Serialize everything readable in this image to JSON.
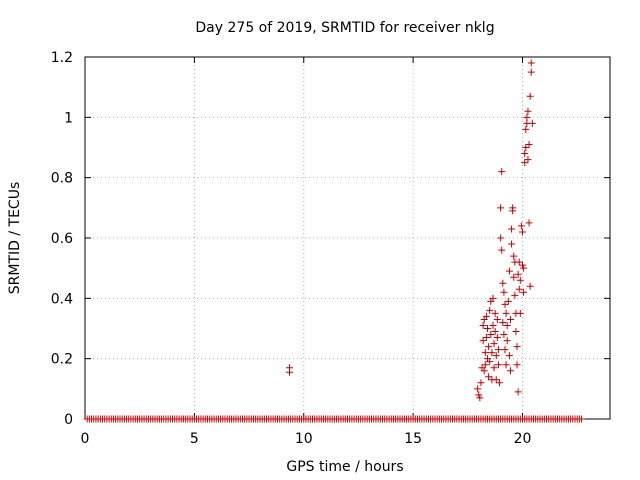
{
  "chart_data": {
    "type": "scatter",
    "title": "Day 275 of 2019, SRMTID for receiver nklg",
    "xlabel": "GPS time / hours",
    "ylabel": "SRMTID / TECUs",
    "xlim": [
      0,
      24
    ],
    "ylim": [
      0,
      1.2
    ],
    "x_ticks": [
      0,
      5,
      10,
      15,
      20
    ],
    "x_tick_labels": [
      "0",
      "5",
      "10",
      "15",
      "20"
    ],
    "y_ticks": [
      0,
      0.2,
      0.4,
      0.6,
      0.8,
      1,
      1.2
    ],
    "y_tick_labels": [
      "0",
      "0.2",
      "0.4",
      "0.6",
      "0.8",
      "1",
      "1.2"
    ],
    "grid": true,
    "marker": "+",
    "color": "#cc0000",
    "baseline": {
      "x_start": 0.1,
      "x_end": 22.7,
      "x_step": 0.1,
      "y": 0
    },
    "series": [
      {
        "name": "SRMTID",
        "points": [
          [
            9.35,
            0.17
          ],
          [
            9.35,
            0.155
          ],
          [
            17.95,
            0.1
          ],
          [
            18.0,
            0.08
          ],
          [
            18.05,
            0.07
          ],
          [
            18.1,
            0.12
          ],
          [
            18.15,
            0.17
          ],
          [
            18.2,
            0.26
          ],
          [
            18.2,
            0.31
          ],
          [
            18.25,
            0.16
          ],
          [
            18.25,
            0.33
          ],
          [
            18.3,
            0.18
          ],
          [
            18.3,
            0.22
          ],
          [
            18.35,
            0.27
          ],
          [
            18.35,
            0.34
          ],
          [
            18.4,
            0.2
          ],
          [
            18.4,
            0.3
          ],
          [
            18.45,
            0.14
          ],
          [
            18.45,
            0.24
          ],
          [
            18.5,
            0.36
          ],
          [
            18.5,
            0.19
          ],
          [
            18.55,
            0.28
          ],
          [
            18.55,
            0.39
          ],
          [
            18.6,
            0.13
          ],
          [
            18.6,
            0.22
          ],
          [
            18.65,
            0.31
          ],
          [
            18.65,
            0.4
          ],
          [
            18.7,
            0.25
          ],
          [
            18.7,
            0.17
          ],
          [
            18.75,
            0.35
          ],
          [
            18.75,
            0.29
          ],
          [
            18.8,
            0.21
          ],
          [
            18.8,
            0.13
          ],
          [
            18.85,
            0.27
          ],
          [
            18.85,
            0.33
          ],
          [
            18.9,
            0.18
          ],
          [
            18.9,
            0.23
          ],
          [
            18.95,
            0.12
          ],
          [
            19.0,
            0.7
          ],
          [
            19.05,
            0.82
          ],
          [
            19.0,
            0.6
          ],
          [
            19.05,
            0.56
          ],
          [
            19.1,
            0.45
          ],
          [
            19.1,
            0.32
          ],
          [
            19.15,
            0.42
          ],
          [
            19.15,
            0.28
          ],
          [
            19.2,
            0.38
          ],
          [
            19.2,
            0.23
          ],
          [
            19.25,
            0.35
          ],
          [
            19.25,
            0.18
          ],
          [
            19.3,
            0.26
          ],
          [
            19.3,
            0.31
          ],
          [
            19.35,
            0.39
          ],
          [
            19.4,
            0.49
          ],
          [
            19.4,
            0.21
          ],
          [
            19.45,
            0.33
          ],
          [
            19.45,
            0.16
          ],
          [
            19.5,
            0.58
          ],
          [
            19.5,
            0.63
          ],
          [
            19.55,
            0.69
          ],
          [
            19.55,
            0.7
          ],
          [
            19.6,
            0.54
          ],
          [
            19.6,
            0.47
          ],
          [
            19.65,
            0.52
          ],
          [
            19.65,
            0.41
          ],
          [
            19.7,
            0.35
          ],
          [
            19.7,
            0.29
          ],
          [
            19.75,
            0.24
          ],
          [
            19.75,
            0.18
          ],
          [
            19.8,
            0.09
          ],
          [
            19.8,
            0.48
          ],
          [
            19.85,
            0.52
          ],
          [
            19.85,
            0.43
          ],
          [
            19.9,
            0.46
          ],
          [
            19.9,
            0.35
          ],
          [
            19.95,
            0.64
          ],
          [
            20.0,
            0.62
          ],
          [
            20.0,
            0.51
          ],
          [
            20.05,
            0.42
          ],
          [
            20.05,
            0.5
          ],
          [
            20.1,
            0.85
          ],
          [
            20.1,
            0.88
          ],
          [
            20.15,
            0.9
          ],
          [
            20.15,
            0.96
          ],
          [
            20.2,
            0.98
          ],
          [
            20.2,
            1.0
          ],
          [
            20.25,
            1.02
          ],
          [
            20.25,
            0.86
          ],
          [
            20.3,
            0.91
          ],
          [
            20.3,
            0.65
          ],
          [
            20.35,
            0.44
          ],
          [
            20.35,
            1.07
          ],
          [
            20.4,
            1.15
          ],
          [
            20.4,
            1.18
          ],
          [
            20.45,
            0.98
          ]
        ]
      }
    ]
  }
}
